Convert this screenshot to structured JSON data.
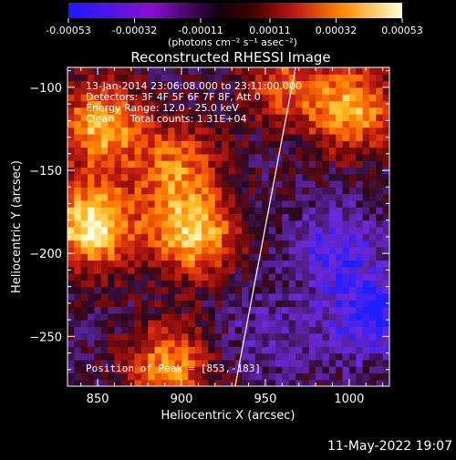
{
  "colorbar": {
    "tick_labels": [
      "-0.00053",
      "-0.00032",
      "-0.00011",
      "0.00011",
      "0.00032",
      "0.00053"
    ],
    "tick_values": [
      -0.00053,
      -0.00032,
      -0.00011,
      0.00011,
      0.00032,
      0.00053
    ],
    "units_label": "(photons cm⁻² s⁻¹ asec⁻²)",
    "colors": [
      "#1a1aff",
      "#8a0fd0",
      "#000000",
      "#b01010",
      "#ff7a00",
      "#ffffd0"
    ]
  },
  "chart_data": {
    "type": "heatmap",
    "title": "Reconstructed RHESSI Image",
    "xlabel": "Heliocentric X (arcsec)",
    "ylabel": "Heliocentric Y (arcsec)",
    "xlim": [
      832,
      1024
    ],
    "ylim": [
      -280,
      -88
    ],
    "x_ticks": [
      850,
      900,
      950,
      1000
    ],
    "y_ticks": [
      -100,
      -150,
      -200,
      -250
    ],
    "annotations": [
      "13-Jan-2014 23:06:08.000 to 23:11:00.000",
      "Detectors: 3F 4F 5F 6F 7F 8F, Att 0",
      "Energy Range: 12.0 - 25.0 keV",
      "Clean     Total counts: 1.31E+04"
    ],
    "peak_label": "Position of Peak = [853,-183]",
    "peak": [
      853,
      -183
    ],
    "bright_regions": [
      {
        "x": 845,
        "y": -185,
        "intensity": 1.0
      },
      {
        "x": 850,
        "y": -125,
        "intensity": 0.8
      },
      {
        "x": 905,
        "y": -190,
        "intensity": 0.85
      },
      {
        "x": 895,
        "y": -150,
        "intensity": 0.6
      },
      {
        "x": 890,
        "y": -270,
        "intensity": 0.7
      },
      {
        "x": 1000,
        "y": -115,
        "intensity": 0.75
      },
      {
        "x": 960,
        "y": -100,
        "intensity": 0.5
      }
    ],
    "dim_regions": [
      {
        "x": 990,
        "y": -200,
        "intensity": -0.4
      },
      {
        "x": 1010,
        "y": -240,
        "intensity": -0.5
      },
      {
        "x": 950,
        "y": -250,
        "intensity": -0.2
      }
    ],
    "limb_line": [
      [
        968,
        -88
      ],
      [
        932,
        -280
      ]
    ]
  },
  "footer": {
    "timestamp": "11-May-2022 19:07"
  }
}
